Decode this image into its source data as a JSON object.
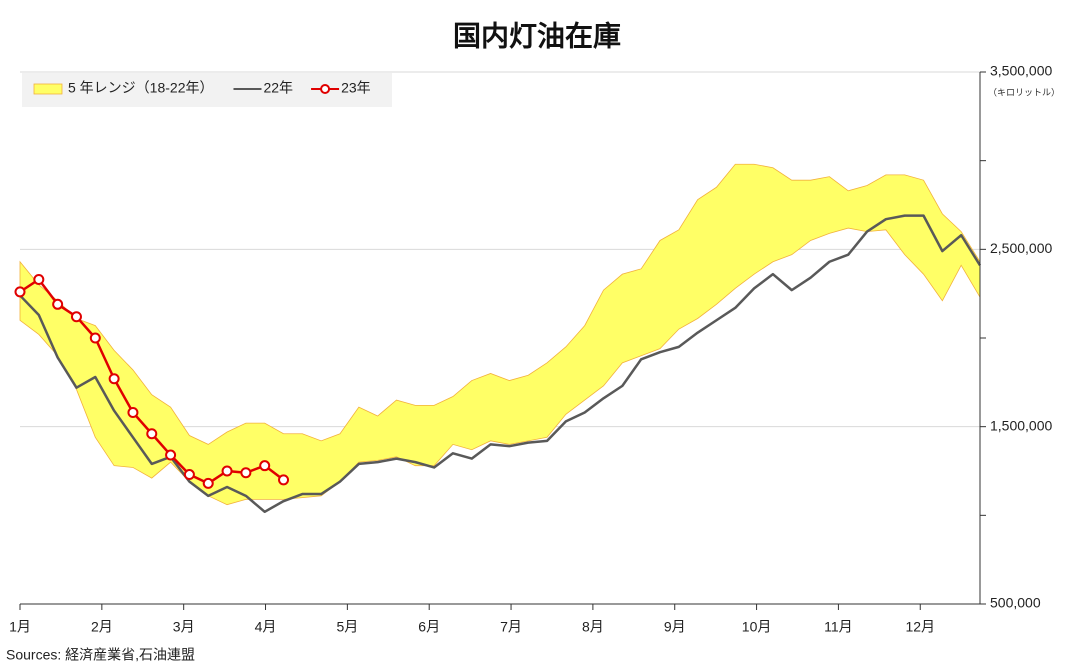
{
  "chart_data": {
    "type": "band-line",
    "title": "国内灯油在庫",
    "y_unit": "（キロリットル）",
    "source": "Sources: 経済産業省,石油連盟",
    "x": [
      1,
      1.23,
      1.46,
      1.69,
      1.92,
      2.15,
      2.38,
      2.61,
      2.84,
      3.07,
      3.3,
      3.53,
      3.76,
      3.99,
      4.22,
      4.45,
      4.68,
      4.91,
      5.14,
      5.37,
      5.6,
      5.83,
      6.06,
      6.29,
      6.52,
      6.75,
      6.98,
      7.21,
      7.44,
      7.67,
      7.9,
      8.13,
      8.36,
      8.59,
      8.82,
      9.05,
      9.28,
      9.51,
      9.74,
      9.97,
      10.2,
      10.43,
      10.66,
      10.89,
      11.12,
      11.35,
      11.58,
      11.81,
      12.04,
      12.27,
      12.5,
      12.73
    ],
    "xlim": [
      1,
      12.73
    ],
    "xticks": [
      {
        "value": 1,
        "label": "1月"
      },
      {
        "value": 2,
        "label": "2月"
      },
      {
        "value": 3,
        "label": "3月"
      },
      {
        "value": 4,
        "label": "4月"
      },
      {
        "value": 5,
        "label": "5月"
      },
      {
        "value": 6,
        "label": "6月"
      },
      {
        "value": 7,
        "label": "7月"
      },
      {
        "value": 8,
        "label": "8月"
      },
      {
        "value": 9,
        "label": "9月"
      },
      {
        "value": 10,
        "label": "10月"
      },
      {
        "value": 11,
        "label": "11月"
      },
      {
        "value": 12,
        "label": "12月"
      }
    ],
    "ylim": [
      500000,
      3500000
    ],
    "yticks": [
      {
        "value": 500000,
        "label": "500,000"
      },
      {
        "value": 1500000,
        "label": "1,500,000"
      },
      {
        "value": 2500000,
        "label": "2,500,000"
      },
      {
        "value": 3500000,
        "label": "3,500,000"
      }
    ],
    "yticks_minor": [
      1000000,
      2000000,
      3000000
    ],
    "grid": true,
    "legend": "top-left",
    "band": {
      "name": "5 年レンジ（18-22年）",
      "color": "#ffff66",
      "edge_color": "#f2b13c",
      "upper": [
        2430000,
        2300000,
        2210000,
        2110000,
        2070000,
        1930000,
        1820000,
        1680000,
        1610000,
        1450000,
        1400000,
        1470000,
        1520000,
        1520000,
        1460000,
        1460000,
        1420000,
        1460000,
        1610000,
        1560000,
        1650000,
        1620000,
        1620000,
        1670000,
        1760000,
        1800000,
        1760000,
        1790000,
        1860000,
        1950000,
        2070000,
        2270000,
        2360000,
        2390000,
        2550000,
        2610000,
        2780000,
        2850000,
        2980000,
        2980000,
        2960000,
        2890000,
        2890000,
        2910000,
        2830000,
        2860000,
        2920000,
        2920000,
        2890000,
        2700000,
        2600000,
        2430000
      ],
      "lower": [
        2100000,
        2020000,
        1900000,
        1710000,
        1440000,
        1280000,
        1270000,
        1210000,
        1300000,
        1190000,
        1110000,
        1060000,
        1090000,
        1090000,
        1090000,
        1100000,
        1110000,
        1190000,
        1300000,
        1310000,
        1330000,
        1280000,
        1280000,
        1400000,
        1370000,
        1420000,
        1400000,
        1420000,
        1440000,
        1570000,
        1650000,
        1730000,
        1860000,
        1900000,
        1940000,
        2050000,
        2110000,
        2190000,
        2280000,
        2360000,
        2430000,
        2470000,
        2550000,
        2590000,
        2620000,
        2600000,
        2610000,
        2470000,
        2360000,
        2210000,
        2410000,
        2230000
      ]
    },
    "series": [
      {
        "name": "22年",
        "color": "#595959",
        "marker": false,
        "values": [
          2240000,
          2130000,
          1890000,
          1720000,
          1780000,
          1590000,
          1440000,
          1290000,
          1330000,
          1190000,
          1110000,
          1160000,
          1110000,
          1020000,
          1080000,
          1120000,
          1120000,
          1190000,
          1290000,
          1300000,
          1320000,
          1300000,
          1270000,
          1350000,
          1320000,
          1400000,
          1390000,
          1410000,
          1420000,
          1530000,
          1580000,
          1660000,
          1730000,
          1880000,
          1920000,
          1950000,
          2030000,
          2100000,
          2170000,
          2280000,
          2360000,
          2270000,
          2340000,
          2430000,
          2470000,
          2600000,
          2670000,
          2690000,
          2690000,
          2490000,
          2580000,
          2410000
        ]
      },
      {
        "name": "23年",
        "color": "#e00000",
        "marker": true,
        "values": [
          2260000,
          2330000,
          2190000,
          2120000,
          2000000,
          1770000,
          1580000,
          1460000,
          1340000,
          1230000,
          1180000,
          1250000,
          1240000,
          1280000,
          1200000,
          null,
          null,
          null,
          null,
          null,
          null,
          null,
          null,
          null,
          null,
          null,
          null,
          null,
          null,
          null,
          null,
          null,
          null,
          null,
          null,
          null,
          null,
          null,
          null,
          null,
          null,
          null,
          null,
          null,
          null,
          null,
          null,
          null,
          null,
          null,
          null,
          null
        ]
      }
    ]
  }
}
